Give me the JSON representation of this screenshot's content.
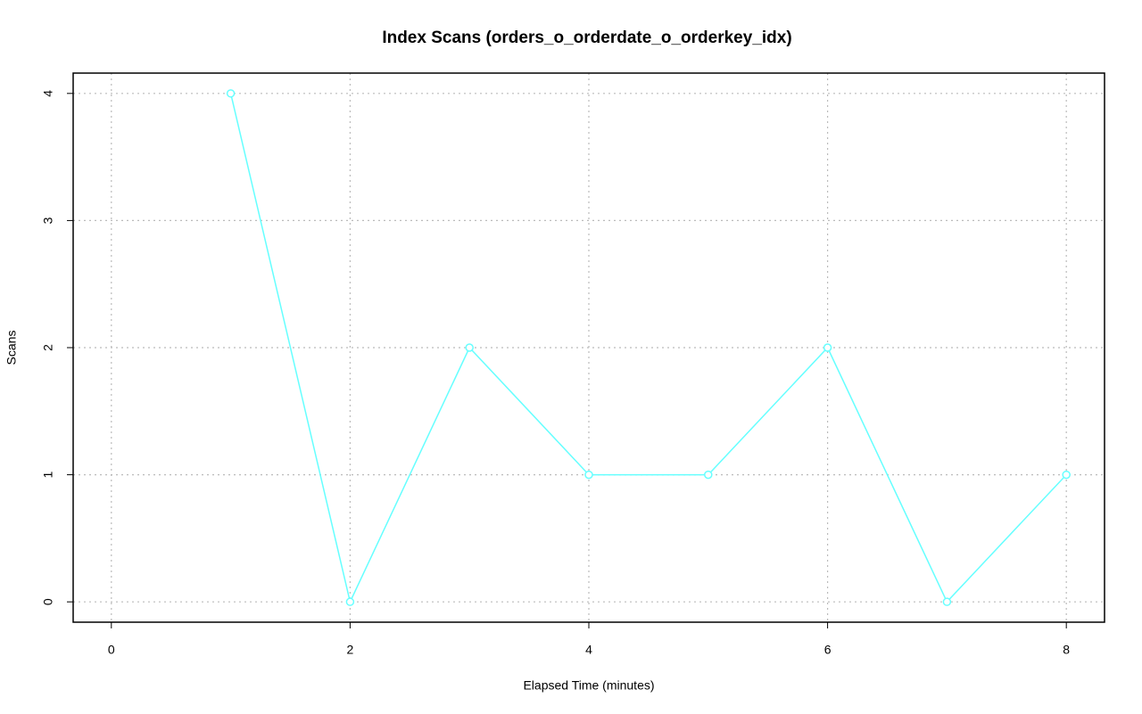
{
  "chart_data": {
    "type": "line",
    "title": "Index Scans (orders_o_orderdate_o_orderkey_idx)",
    "x_label": "Elapsed Time (minutes)",
    "y_label": "Scans",
    "x": [
      1,
      2,
      3,
      4,
      5,
      6,
      7,
      8
    ],
    "series": [
      {
        "name": "Scans",
        "color": "#66ffff",
        "values": [
          4,
          0,
          2,
          1,
          1,
          2,
          0,
          1
        ]
      }
    ],
    "xlim": [
      -0.32,
      8.32
    ],
    "xticks": [
      0,
      2,
      4,
      6,
      8
    ],
    "ylim": [
      -0.16,
      4.16
    ],
    "yticks": [
      0,
      1,
      2,
      3,
      4
    ],
    "grid": true
  }
}
